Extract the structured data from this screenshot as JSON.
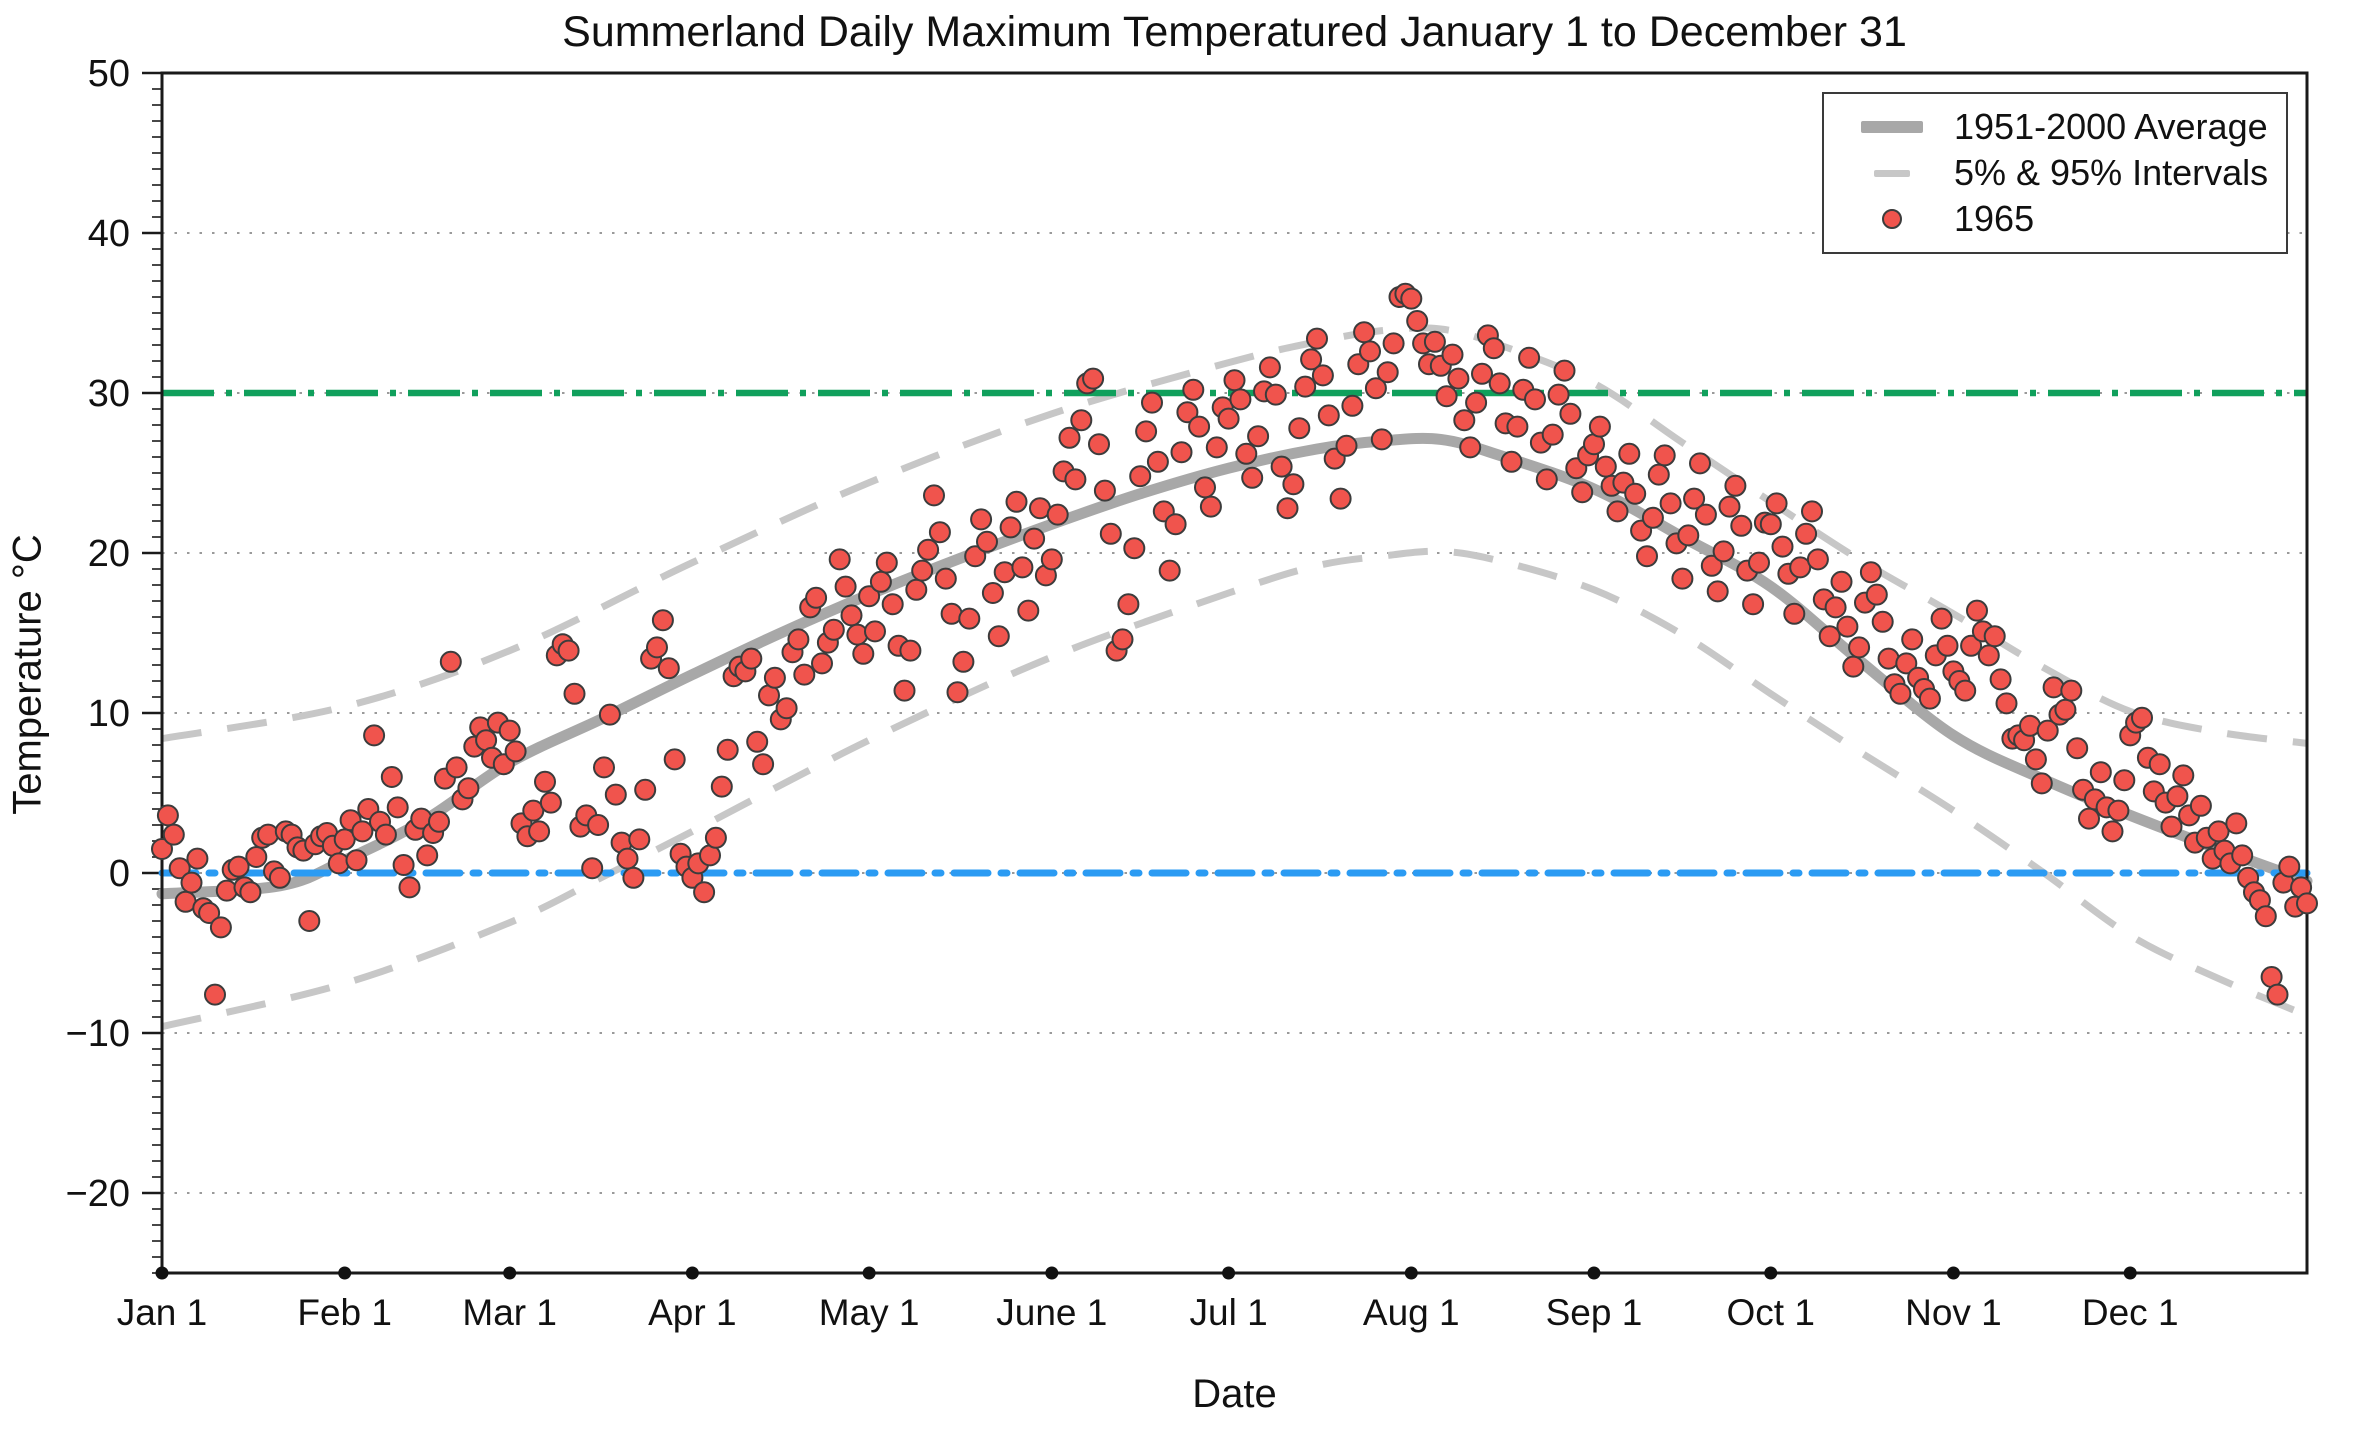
{
  "title": "Summerland Daily Maximum Temperatured January 1 to December 31",
  "legend": {
    "items": [
      {
        "label": "1951-2000 Average",
        "sample": "thick-gray-line"
      },
      {
        "label": "5% & 95% Intervals",
        "sample": "dashed-gray-line"
      },
      {
        "label": "1965",
        "sample": "red-dot"
      }
    ]
  },
  "colors": {
    "average_line": "#a8a8a8",
    "interval_line": "#c7c7c7",
    "scatter_fill": "#F0544D",
    "scatter_stroke": "#3C3C3C",
    "threshold_green": "#10A05C",
    "freezing_blue": "#2B9BF3",
    "axis": "#1a1a1a"
  },
  "chart_data": {
    "type": "scatter",
    "title": "Summerland Daily Maximum Temperatured January 1 to December 31",
    "xlabel": "Date",
    "ylabel": "Temperature °C",
    "ylim": [
      -25,
      50
    ],
    "days_in_year": 365,
    "grid": "dotted horizontal at every 10 °C",
    "legend_position": "upper right",
    "yticks": [
      {
        "value": 50,
        "label": "50"
      },
      {
        "value": 40,
        "label": "40"
      },
      {
        "value": 30,
        "label": "30"
      },
      {
        "value": 20,
        "label": "20"
      },
      {
        "value": 10,
        "label": "10"
      },
      {
        "value": 0,
        "label": "0"
      },
      {
        "value": -10,
        "label": "−10"
      },
      {
        "value": -20,
        "label": "−20"
      }
    ],
    "grid_y": [
      -20,
      -10,
      0,
      10,
      20,
      30,
      40
    ],
    "x_ticks": [
      {
        "label": "Jan 1",
        "day": 0
      },
      {
        "label": "Feb 1",
        "day": 31
      },
      {
        "label": "Mar 1",
        "day": 59
      },
      {
        "label": "Apr 1",
        "day": 90
      },
      {
        "label": "May 1",
        "day": 120
      },
      {
        "label": "June 1",
        "day": 151
      },
      {
        "label": "Jul 1",
        "day": 181
      },
      {
        "label": "Aug 1",
        "day": 212
      },
      {
        "label": "Sep 1",
        "day": 243
      },
      {
        "label": "Oct 1",
        "day": 273
      },
      {
        "label": "Nov 1",
        "day": 304
      },
      {
        "label": "Dec 1",
        "day": 334
      }
    ],
    "reference_lines": [
      {
        "name": "30C-threshold",
        "value": 30,
        "style": "dashed",
        "color": "#10A05C"
      },
      {
        "name": "freezing-line",
        "value": 0,
        "style": "dashdot",
        "color": "#2B9BF3"
      }
    ],
    "series": [
      {
        "name": "1951-2000 Average",
        "type": "line",
        "anchors": [
          [
            0,
            -1.3
          ],
          [
            20,
            -0.8
          ],
          [
            31,
            0.8
          ],
          [
            45,
            3.4
          ],
          [
            59,
            6.9
          ],
          [
            75,
            9.7
          ],
          [
            90,
            12.4
          ],
          [
            105,
            15.0
          ],
          [
            120,
            17.4
          ],
          [
            135,
            19.6
          ],
          [
            151,
            21.8
          ],
          [
            166,
            23.7
          ],
          [
            181,
            25.3
          ],
          [
            196,
            26.5
          ],
          [
            207,
            27.0
          ],
          [
            217,
            27.1
          ],
          [
            227,
            26.1
          ],
          [
            243,
            24.0
          ],
          [
            258,
            21.0
          ],
          [
            273,
            17.9
          ],
          [
            288,
            13.3
          ],
          [
            304,
            8.6
          ],
          [
            319,
            5.9
          ],
          [
            334,
            3.6
          ],
          [
            349,
            1.5
          ],
          [
            364,
            -0.5
          ]
        ]
      },
      {
        "name": "95% Interval",
        "type": "dashed-line",
        "anchors": [
          [
            0,
            8.4
          ],
          [
            31,
            10.4
          ],
          [
            59,
            13.9
          ],
          [
            90,
            19.4
          ],
          [
            120,
            24.4
          ],
          [
            151,
            28.7
          ],
          [
            181,
            31.9
          ],
          [
            196,
            33.2
          ],
          [
            207,
            33.9
          ],
          [
            217,
            34.0
          ],
          [
            227,
            33.0
          ],
          [
            243,
            30.6
          ],
          [
            258,
            26.9
          ],
          [
            273,
            23.2
          ],
          [
            288,
            19.6
          ],
          [
            304,
            16.2
          ],
          [
            319,
            12.9
          ],
          [
            334,
            10.1
          ],
          [
            349,
            8.8
          ],
          [
            364,
            8.1
          ]
        ]
      },
      {
        "name": "5% Interval",
        "type": "dashed-line",
        "anchors": [
          [
            0,
            -9.6
          ],
          [
            31,
            -6.9
          ],
          [
            59,
            -3.1
          ],
          [
            75,
            -0.2
          ],
          [
            90,
            2.6
          ],
          [
            120,
            8.3
          ],
          [
            151,
            13.5
          ],
          [
            181,
            17.5
          ],
          [
            196,
            19.2
          ],
          [
            207,
            19.8
          ],
          [
            217,
            20.1
          ],
          [
            227,
            19.5
          ],
          [
            243,
            17.7
          ],
          [
            258,
            14.9
          ],
          [
            273,
            11.2
          ],
          [
            288,
            7.6
          ],
          [
            304,
            3.9
          ],
          [
            319,
            0.1
          ],
          [
            334,
            -3.9
          ],
          [
            349,
            -6.6
          ],
          [
            364,
            -8.9
          ]
        ]
      },
      {
        "name": "1965",
        "type": "scatter",
        "start_day": 0,
        "values": [
          1.5,
          3.6,
          2.4,
          0.3,
          -1.8,
          -0.6,
          0.9,
          -2.2,
          -2.5,
          -7.6,
          -3.4,
          -1.1,
          0.2,
          0.4,
          -0.9,
          -1.2,
          1.0,
          2.2,
          2.4,
          0.1,
          -0.3,
          2.6,
          2.4,
          1.6,
          1.4,
          -3.0,
          1.8,
          2.3,
          2.5,
          1.7,
          0.6,
          2.1,
          3.3,
          0.8,
          2.6,
          4.0,
          8.6,
          3.2,
          2.4,
          6.0,
          4.1,
          0.5,
          -0.9,
          2.7,
          3.4,
          1.1,
          2.5,
          3.2,
          5.9,
          13.2,
          6.6,
          4.6,
          5.3,
          7.9,
          9.1,
          8.3,
          7.2,
          9.4,
          6.8,
          8.9,
          7.6,
          3.1,
          2.3,
          3.9,
          2.6,
          5.7,
          4.4,
          13.6,
          14.3,
          13.9,
          11.2,
          2.9,
          3.6,
          0.3,
          3.0,
          6.6,
          9.9,
          4.9,
          1.9,
          0.9,
          -0.3,
          2.1,
          5.2,
          13.4,
          14.1,
          15.8,
          12.8,
          7.1,
          1.2,
          0.4,
          -0.3,
          0.6,
          -1.2,
          1.1,
          2.2,
          5.4,
          7.7,
          12.3,
          12.9,
          12.6,
          13.4,
          8.2,
          6.8,
          11.1,
          12.2,
          9.6,
          10.3,
          13.8,
          14.6,
          12.4,
          16.6,
          17.2,
          13.1,
          14.4,
          15.2,
          19.6,
          17.9,
          16.1,
          14.9,
          13.7,
          17.3,
          15.1,
          18.2,
          19.4,
          16.8,
          14.2,
          11.4,
          13.9,
          17.7,
          18.9,
          20.2,
          23.6,
          21.3,
          18.4,
          16.2,
          11.3,
          13.2,
          15.9,
          19.8,
          22.1,
          20.7,
          17.5,
          14.8,
          18.8,
          21.6,
          23.2,
          19.1,
          16.4,
          20.9,
          22.8,
          18.6,
          19.6,
          22.4,
          25.1,
          27.2,
          24.6,
          28.3,
          30.6,
          30.9,
          26.8,
          23.9,
          21.2,
          13.9,
          14.6,
          16.8,
          20.3,
          24.8,
          27.6,
          29.4,
          25.7,
          22.6,
          18.9,
          21.8,
          26.3,
          28.8,
          30.2,
          27.9,
          24.1,
          22.9,
          26.6,
          29.1,
          28.4,
          30.8,
          29.6,
          26.2,
          24.7,
          27.3,
          30.1,
          31.6,
          29.9,
          25.4,
          22.8,
          24.3,
          27.8,
          30.4,
          32.1,
          33.4,
          31.1,
          28.6,
          25.9,
          23.4,
          26.7,
          29.2,
          31.8,
          33.8,
          32.6,
          30.3,
          27.1,
          31.3,
          33.1,
          36.0,
          36.2,
          35.9,
          34.5,
          33.1,
          31.8,
          33.2,
          31.7,
          29.8,
          32.4,
          30.9,
          28.3,
          26.6,
          29.4,
          31.2,
          33.6,
          32.8,
          30.6,
          28.1,
          25.7,
          27.9,
          30.2,
          32.2,
          29.6,
          26.9,
          24.6,
          27.4,
          29.9,
          31.4,
          28.7,
          25.3,
          23.8,
          26.1,
          26.8,
          27.9,
          25.4,
          24.2,
          22.6,
          24.4,
          26.2,
          23.7,
          21.4,
          19.8,
          22.2,
          24.9,
          26.1,
          23.1,
          20.6,
          18.4,
          21.1,
          23.4,
          25.6,
          22.4,
          19.2,
          17.6,
          20.1,
          22.9,
          24.2,
          21.7,
          18.9,
          16.8,
          19.4,
          21.9,
          21.8,
          23.1,
          20.4,
          18.7,
          16.2,
          19.1,
          21.2,
          22.6,
          19.6,
          17.1,
          14.8,
          16.6,
          18.2,
          15.4,
          12.9,
          14.1,
          16.9,
          18.8,
          17.4,
          15.7,
          13.4,
          11.8,
          11.2,
          13.1,
          14.6,
          12.2,
          11.5,
          10.9,
          13.6,
          15.9,
          14.2,
          12.6,
          12.0,
          11.4,
          14.2,
          16.4,
          15.1,
          13.6,
          14.8,
          12.1,
          10.6,
          8.4,
          8.6,
          8.3,
          9.2,
          7.1,
          5.6,
          8.9,
          11.6,
          9.9,
          10.2,
          11.4,
          7.8,
          5.2,
          3.4,
          4.6,
          6.3,
          4.1,
          2.6,
          3.9,
          5.8,
          8.6,
          9.4,
          9.7,
          7.2,
          5.1,
          6.8,
          4.4,
          2.9,
          4.8,
          6.1,
          3.6,
          1.9,
          4.2,
          2.2,
          0.9,
          2.6,
          1.4,
          0.6,
          3.1,
          1.1,
          -0.3,
          -1.2,
          -1.7,
          -2.7,
          -6.5,
          -7.6,
          -0.6,
          0.4,
          -2.1,
          -0.9,
          -1.9
        ]
      }
    ]
  }
}
